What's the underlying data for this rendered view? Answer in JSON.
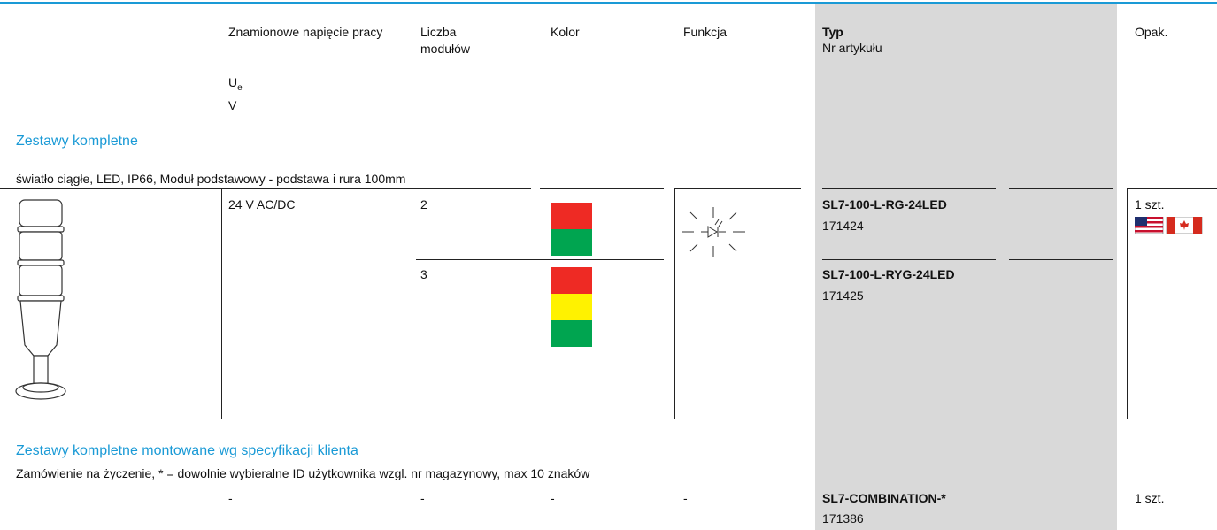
{
  "header": {
    "columns": [
      {
        "label": "Znamionowe napięcie pracy",
        "symbol": "U",
        "symbol_sub": "e",
        "unit": "V"
      },
      {
        "label": "Liczba modułów"
      },
      {
        "label": "Kolor"
      },
      {
        "label": "Funkcja"
      },
      {
        "label": "Typ",
        "sublabel": "Nr artykułu"
      },
      {
        "label": "Opak."
      }
    ]
  },
  "sections": [
    {
      "title": "Zestawy kompletne",
      "note": "światło ciągłe, LED, IP66, Moduł podstawowy - podstawa i rura 100mm",
      "rows": [
        {
          "voltage": "24 V AC/DC",
          "modules": "2",
          "colors": [
            "#ee2a24",
            "#00a550"
          ],
          "type": "SL7-100-L-RG-24LED",
          "article": "171424",
          "pack": "1 szt."
        },
        {
          "modules": "3",
          "colors": [
            "#ee2a24",
            "#fff200",
            "#00a550"
          ],
          "type": "SL7-100-L-RYG-24LED",
          "article": "171425"
        }
      ]
    },
    {
      "title": "Zestawy kompletne montowane wg specyfikacji klienta",
      "note": "Zamówienie na życzenie, * = dowolnie wybieralne ID użytkownika wzgl. nr magazynowy, max 10 znaków",
      "rows": [
        {
          "voltage": "-",
          "modules": "-",
          "color": "-",
          "function": "-",
          "type": "SL7-COMBINATION-*",
          "article": "171386",
          "pack": "1 szt."
        }
      ]
    }
  ]
}
